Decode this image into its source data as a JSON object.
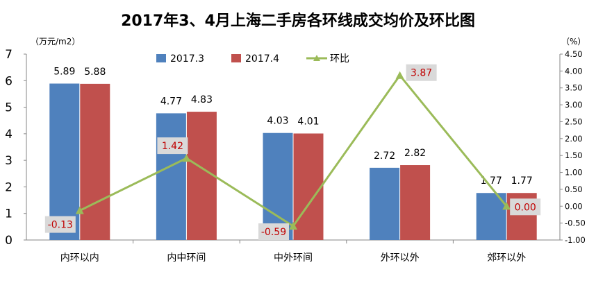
{
  "title": "2017年3、4月上海二手房各环线成交均价及环比图",
  "chart_data": {
    "type": "bar",
    "title": "2017年3、4月上海二手房各环线成交均价及环比图",
    "categories": [
      "内环以内",
      "内中环间",
      "中外环间",
      "外环以外",
      "郊环以外"
    ],
    "series": [
      {
        "name": "2017.3",
        "type": "bar",
        "axis": "left",
        "color": "#4f81bd",
        "values": [
          5.89,
          4.77,
          4.03,
          2.72,
          1.77
        ]
      },
      {
        "name": "2017.4",
        "type": "bar",
        "axis": "left",
        "color": "#c0504d",
        "values": [
          5.88,
          4.83,
          4.01,
          2.82,
          1.77
        ]
      },
      {
        "name": "环比",
        "type": "line",
        "axis": "right",
        "color": "#9bbb59",
        "values": [
          -0.13,
          1.42,
          -0.59,
          3.87,
          0.0
        ],
        "labels": [
          "-0.13",
          "1.42",
          "-0.59",
          "3.87",
          "0.00"
        ]
      }
    ],
    "y_left": {
      "unit": "（万元/m2）",
      "range": [
        0,
        7
      ],
      "ticks": [
        "0",
        "1",
        "2",
        "3",
        "4",
        "5",
        "6",
        "7"
      ]
    },
    "y_right": {
      "unit": "（%）",
      "range": [
        -1.0,
        4.5
      ],
      "ticks": [
        "-1.00",
        "-0.50",
        "0.00",
        "0.50",
        "1.00",
        "1.50",
        "2.00",
        "2.50",
        "3.00",
        "3.50",
        "4.00",
        "4.50"
      ]
    },
    "bar_labels": [
      [
        "5.89",
        "4.77",
        "4.03",
        "2.72",
        "1.77"
      ],
      [
        "5.88",
        "4.83",
        "4.01",
        "2.82",
        "1.77"
      ]
    ],
    "legend": {
      "position": "top",
      "items": [
        "2017.3",
        "2017.4",
        "环比"
      ]
    },
    "grid": false
  }
}
